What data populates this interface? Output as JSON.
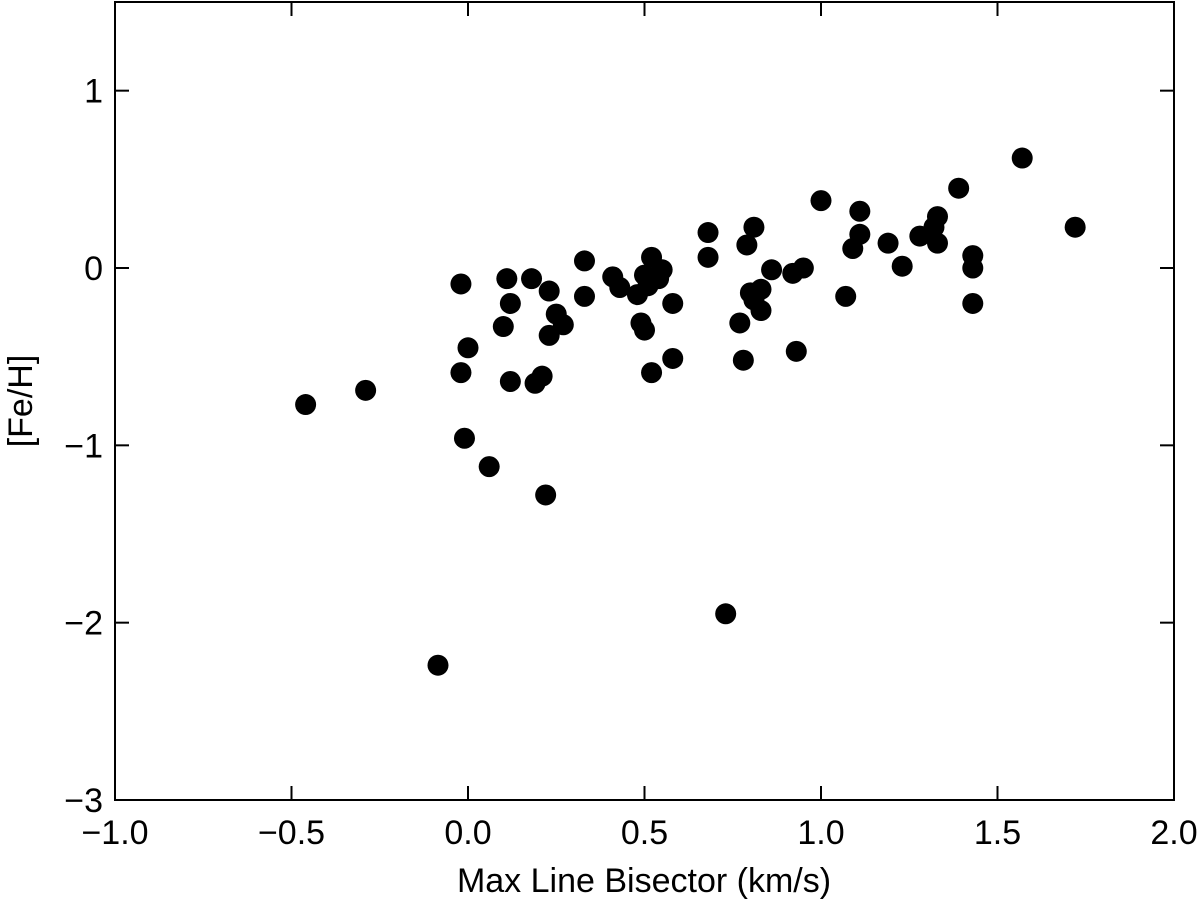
{
  "chart_data": {
    "type": "scatter",
    "xlabel": "Max Line Bisector (km/s)",
    "ylabel": "[Fe/H]",
    "color": "#000000",
    "xlim": [
      -1.0,
      2.0
    ],
    "ylim": [
      -3,
      1.5
    ],
    "xticks": [
      {
        "value": -1.0,
        "label": "−1.0"
      },
      {
        "value": -0.5,
        "label": "−0.5"
      },
      {
        "value": 0,
        "label": "0.0"
      },
      0.5,
      {
        "value": 1,
        "label": "1.0"
      },
      1.5,
      {
        "value": 2,
        "label": "2.0"
      }
    ],
    "yticks": [
      {
        "value": -3,
        "label": "−3"
      },
      {
        "value": -2,
        "label": "−2"
      },
      {
        "value": -1,
        "label": "−1"
      },
      0,
      1
    ],
    "x": [
      -0.46,
      -0.29,
      -0.085,
      -0.02,
      -0.02,
      -0.01,
      0.0,
      0.06,
      0.1,
      0.11,
      0.12,
      0.12,
      0.18,
      0.19,
      0.21,
      0.22,
      0.23,
      0.23,
      0.25,
      0.27,
      0.33,
      0.33,
      0.41,
      0.43,
      0.48,
      0.49,
      0.5,
      0.5,
      0.52,
      0.51,
      0.52,
      0.54,
      0.55,
      0.58,
      0.58,
      0.68,
      0.68,
      0.73,
      0.77,
      0.78,
      0.79,
      0.81,
      0.8,
      0.81,
      0.83,
      0.83,
      0.86,
      0.92,
      0.93,
      0.95,
      1.0,
      1.07,
      1.09,
      1.11,
      1.11,
      1.19,
      1.23,
      1.28,
      1.32,
      1.33,
      1.33,
      1.39,
      1.43,
      1.43,
      1.43,
      1.57,
      1.72
    ],
    "values": [
      -0.77,
      -0.69,
      -2.24,
      -0.09,
      -0.59,
      -0.96,
      -0.45,
      -1.12,
      -0.33,
      -0.06,
      -0.2,
      -0.64,
      -0.06,
      -0.65,
      -0.61,
      -1.28,
      -0.13,
      -0.38,
      -0.26,
      -0.32,
      0.04,
      -0.16,
      -0.05,
      -0.11,
      -0.15,
      -0.31,
      -0.04,
      -0.35,
      0.06,
      -0.1,
      -0.59,
      -0.06,
      -0.01,
      -0.2,
      -0.51,
      0.2,
      0.06,
      -1.95,
      -0.31,
      -0.52,
      0.13,
      0.23,
      -0.14,
      -0.18,
      -0.24,
      -0.12,
      -0.01,
      -0.03,
      -0.47,
      0.0,
      0.38,
      -0.16,
      0.11,
      0.32,
      0.19,
      0.14,
      0.01,
      0.18,
      0.23,
      0.29,
      0.14,
      0.45,
      0.07,
      0.0,
      -0.2,
      0.62,
      0.23
    ]
  }
}
